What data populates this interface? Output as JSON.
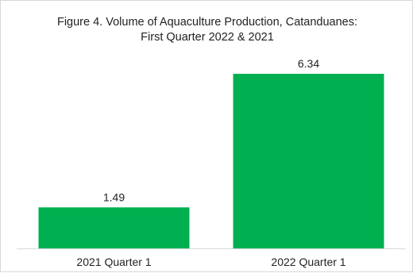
{
  "chart_data": {
    "type": "bar",
    "title_lines": [
      "Figure 4. Volume of Aquaculture Production, Catanduanes:",
      "First Quarter 2022 & 2021"
    ],
    "categories": [
      "2021 Quarter 1",
      "2022 Quarter 1"
    ],
    "values": [
      1.49,
      6.34
    ],
    "data_labels": [
      "1.49",
      "6.34"
    ],
    "xlabel": "",
    "ylabel": "",
    "ylim": [
      0,
      6.34
    ],
    "grid": false,
    "legend": "none",
    "bar_color": "#00B050"
  }
}
